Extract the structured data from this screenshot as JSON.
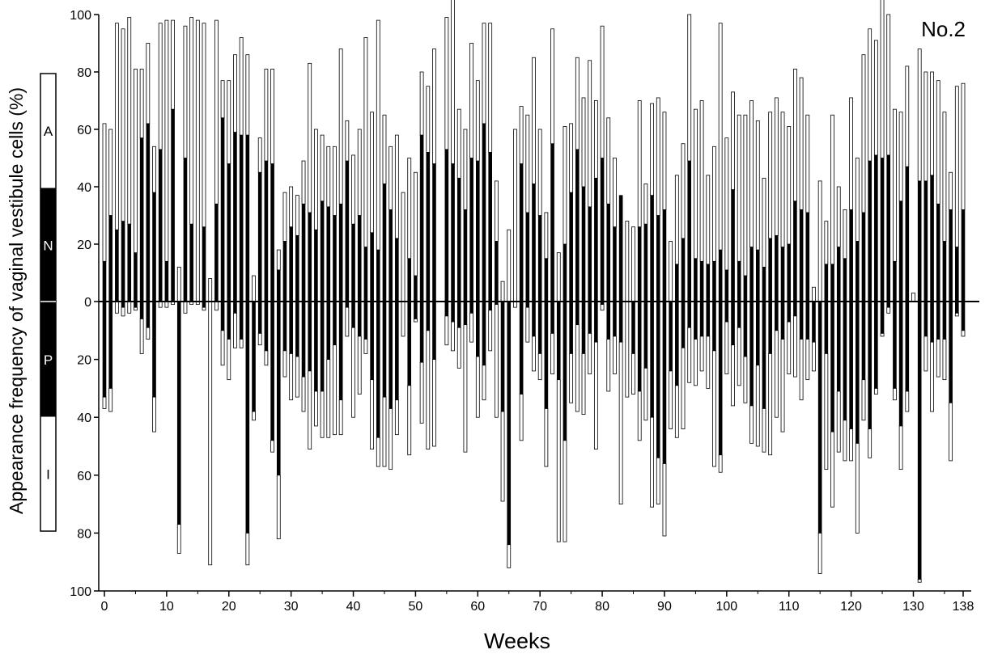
{
  "chart_data": {
    "type": "bar",
    "title": "",
    "panel_label": "No.2",
    "xlabel": "Weeks",
    "ylabel": "Appearance frequency of vaginal vestibule cells (%)",
    "x_ticks": [
      "0",
      "10",
      "20",
      "30",
      "40",
      "50",
      "60",
      "70",
      "80",
      "90",
      "100",
      "110",
      "120",
      "130",
      "138"
    ],
    "y_ticks_top": [
      "100",
      "80",
      "60",
      "40",
      "20",
      "0"
    ],
    "y_ticks_bottom": [
      "20",
      "40",
      "60",
      "80",
      "100"
    ],
    "xlim": [
      0,
      138
    ],
    "ylim_up": [
      0,
      100
    ],
    "ylim_down": [
      0,
      100
    ],
    "phase_scale": [
      {
        "label": "A",
        "fill": "#ffffff",
        "from": 60,
        "to": 100
      },
      {
        "label": "N",
        "fill": "#000000",
        "from": 20,
        "to": 60
      },
      {
        "label": "P",
        "fill": "#000000",
        "from": -40,
        "to": -20
      },
      {
        "label": "I",
        "fill": "#ffffff",
        "from": -80,
        "to": -40
      }
    ],
    "stack_segments_up": [
      "N (black)",
      "A (white)"
    ],
    "stack_segments_down": [
      "P (black)",
      "I (white)"
    ],
    "colors": {
      "A": "#ffffff",
      "N": "#000000",
      "P": "#000000",
      "I": "#ffffff"
    },
    "weeks": [
      0,
      1,
      2,
      3,
      4,
      5,
      6,
      7,
      8,
      9,
      10,
      11,
      12,
      13,
      14,
      15,
      16,
      17,
      18,
      19,
      20,
      21,
      22,
      23,
      24,
      25,
      26,
      27,
      28,
      29,
      30,
      31,
      32,
      33,
      34,
      35,
      36,
      37,
      38,
      39,
      40,
      41,
      42,
      43,
      44,
      45,
      46,
      47,
      48,
      49,
      50,
      51,
      52,
      53,
      54,
      55,
      56,
      57,
      58,
      59,
      60,
      61,
      62,
      63,
      64,
      65,
      66,
      67,
      68,
      69,
      70,
      71,
      72,
      73,
      74,
      75,
      76,
      77,
      78,
      79,
      80,
      81,
      82,
      83,
      84,
      85,
      86,
      87,
      88,
      89,
      90,
      91,
      92,
      93,
      94,
      95,
      96,
      97,
      98,
      99,
      100,
      101,
      102,
      103,
      104,
      105,
      106,
      107,
      108,
      109,
      110,
      111,
      112,
      113,
      114,
      115,
      116,
      117,
      118,
      119,
      120,
      121,
      122,
      123,
      124,
      125,
      126,
      127,
      128,
      129,
      130,
      131,
      132,
      133,
      134,
      135,
      136,
      137,
      138
    ],
    "N": [
      14,
      30,
      25,
      28,
      27,
      17,
      57,
      62,
      38,
      53,
      14,
      67,
      0,
      50,
      27,
      0,
      26,
      0,
      34,
      64,
      48,
      59,
      58,
      58,
      0,
      45,
      49,
      48,
      11,
      21,
      26,
      23,
      34,
      31,
      25,
      35,
      33,
      30,
      34,
      49,
      27,
      30,
      19,
      24,
      18,
      41,
      32,
      22,
      0,
      15,
      9,
      58,
      52,
      48,
      0,
      53,
      48,
      43,
      32,
      50,
      49,
      62,
      52,
      21,
      0,
      0,
      0,
      48,
      31,
      41,
      30,
      15,
      55,
      0,
      20,
      38,
      53,
      40,
      33,
      43,
      50,
      34,
      26,
      37,
      0,
      0,
      26,
      27,
      37,
      30,
      32,
      0,
      13,
      22,
      49,
      15,
      14,
      13,
      14,
      18,
      11,
      39,
      14,
      9,
      19,
      18,
      12,
      22,
      23,
      19,
      20,
      35,
      32,
      31,
      0,
      0,
      13,
      13,
      19,
      15,
      32,
      21,
      31,
      49,
      51,
      50,
      51,
      14,
      35,
      47,
      0,
      42,
      42,
      44,
      34,
      21,
      32,
      19,
      32
    ],
    "A": [
      48,
      30,
      72,
      67,
      72,
      64,
      24,
      28,
      16,
      44,
      84,
      31,
      12,
      46,
      72,
      98,
      71,
      8,
      64,
      13,
      29,
      27,
      34,
      28,
      9,
      12,
      32,
      33,
      7,
      17,
      14,
      14,
      15,
      52,
      35,
      23,
      21,
      24,
      54,
      14,
      24,
      30,
      73,
      42,
      80,
      24,
      22,
      36,
      38,
      35,
      36,
      22,
      23,
      40,
      0,
      46,
      58,
      24,
      28,
      40,
      28,
      35,
      45,
      21,
      7,
      25,
      60,
      20,
      34,
      44,
      30,
      16,
      40,
      17,
      41,
      24,
      32,
      31,
      51,
      27,
      46,
      30,
      24,
      0,
      28,
      26,
      44,
      14,
      32,
      41,
      34,
      21,
      31,
      33,
      51,
      52,
      56,
      31,
      40,
      79,
      46,
      34,
      51,
      56,
      51,
      45,
      31,
      44,
      48,
      47,
      41,
      46,
      46,
      34,
      5,
      42,
      15,
      52,
      21,
      17,
      39,
      29,
      55,
      46,
      40,
      63,
      49,
      53,
      31,
      35,
      3,
      46,
      38,
      36,
      43,
      45,
      13,
      56,
      44
    ],
    "P": [
      33,
      30,
      0,
      2,
      0,
      2,
      6,
      9,
      33,
      0,
      0,
      0,
      77,
      0,
      0,
      0,
      2,
      0,
      0,
      10,
      13,
      4,
      13,
      80,
      38,
      11,
      17,
      48,
      60,
      17,
      18,
      19,
      26,
      24,
      31,
      31,
      20,
      15,
      34,
      2,
      9,
      12,
      13,
      27,
      47,
      33,
      37,
      34,
      0,
      29,
      6,
      21,
      10,
      20,
      0,
      5,
      7,
      9,
      8,
      4,
      19,
      22,
      3,
      1,
      38,
      84,
      0,
      32,
      2,
      12,
      18,
      37,
      11,
      27,
      48,
      18,
      8,
      18,
      11,
      14,
      1,
      13,
      12,
      14,
      0,
      18,
      31,
      23,
      40,
      54,
      56,
      24,
      29,
      16,
      9,
      13,
      12,
      12,
      17,
      53,
      7,
      15,
      9,
      19,
      36,
      22,
      37,
      18,
      10,
      13,
      7,
      5,
      13,
      13,
      14,
      80,
      18,
      45,
      31,
      41,
      44,
      49,
      27,
      44,
      30,
      11,
      2,
      30,
      43,
      31,
      0,
      96,
      12,
      14,
      13,
      13,
      35,
      4,
      10
    ],
    "I": [
      4,
      8,
      4,
      3,
      4,
      1,
      12,
      4,
      12,
      2,
      2,
      1,
      10,
      4,
      1,
      1,
      1,
      91,
      3,
      12,
      14,
      12,
      3,
      11,
      3,
      4,
      5,
      4,
      22,
      9,
      16,
      14,
      12,
      27,
      12,
      16,
      27,
      31,
      12,
      10,
      31,
      20,
      5,
      24,
      10,
      24,
      21,
      12,
      12,
      24,
      1,
      21,
      41,
      30,
      0,
      10,
      10,
      14,
      44,
      10,
      21,
      12,
      14,
      39,
      31,
      8,
      2,
      16,
      12,
      12,
      9,
      20,
      14,
      56,
      35,
      17,
      30,
      21,
      14,
      37,
      2,
      18,
      13,
      56,
      33,
      14,
      17,
      18,
      31,
      16,
      25,
      20,
      18,
      28,
      19,
      16,
      12,
      18,
      40,
      6,
      18,
      21,
      20,
      16,
      13,
      28,
      15,
      35,
      30,
      32,
      18,
      21,
      21,
      14,
      10,
      14,
      40,
      26,
      21,
      14,
      11,
      31,
      14,
      10,
      2,
      1,
      2,
      4,
      15,
      7,
      0,
      1,
      12,
      24,
      13,
      14,
      20,
      1,
      2
    ]
  }
}
